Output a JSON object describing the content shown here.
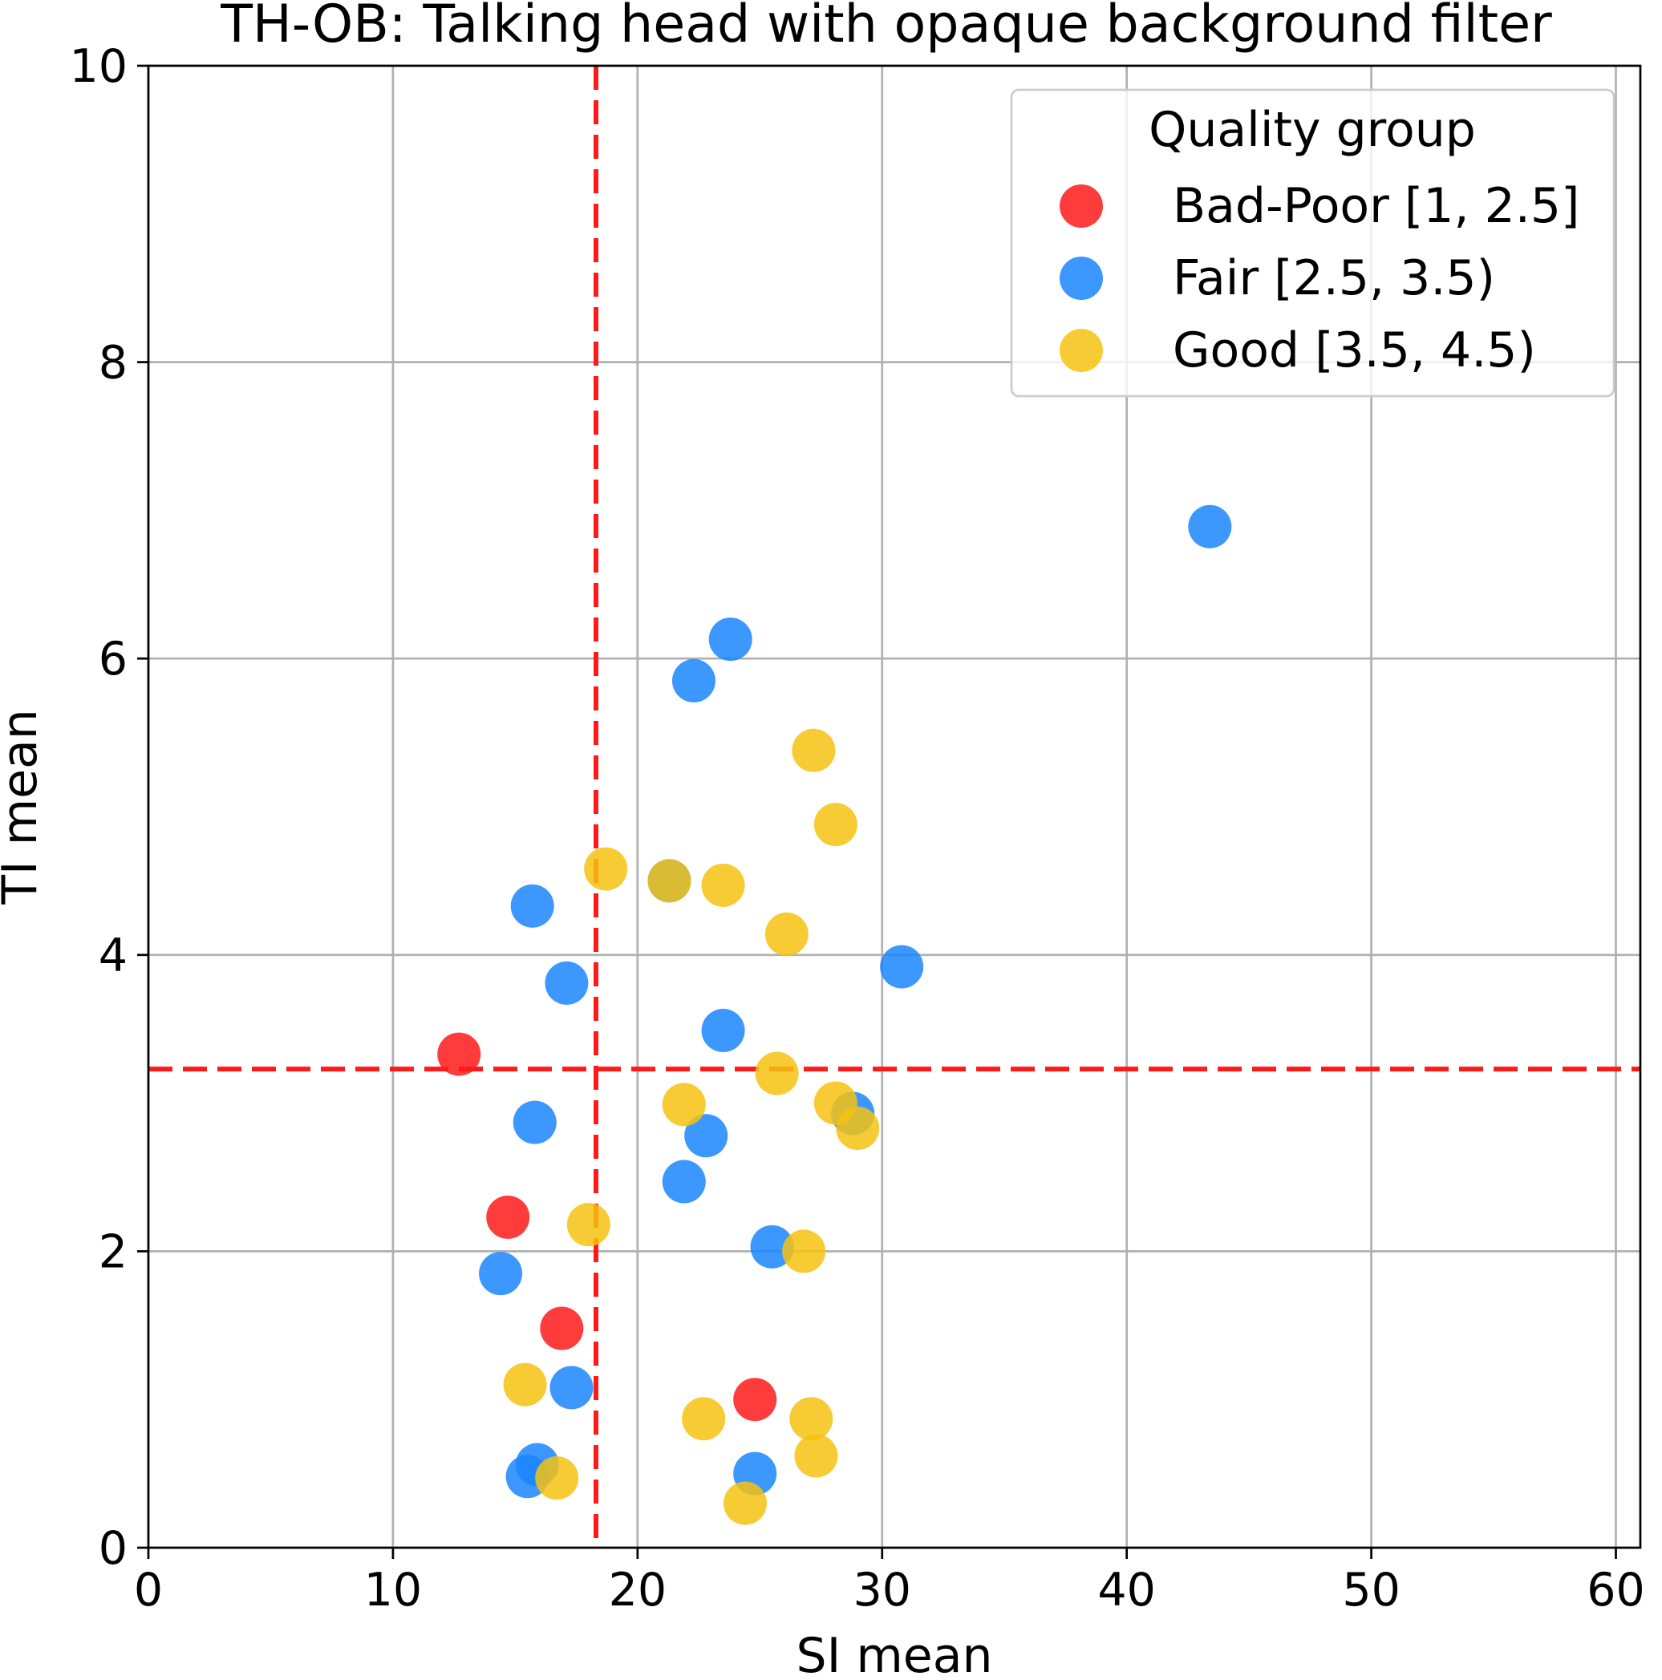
{
  "chart_data": {
    "type": "scatter",
    "title": "TH-OB: Talking head with opaque background filter",
    "xlabel": "SI mean",
    "ylabel": "TI mean",
    "xlim": [
      0,
      61
    ],
    "ylim": [
      0,
      10
    ],
    "xticks": [
      0,
      10,
      20,
      30,
      40,
      50,
      60
    ],
    "yticks": [
      0,
      2,
      4,
      6,
      8,
      10
    ],
    "grid": true,
    "reference_lines": {
      "vertical_x": 18.3,
      "horizontal_y": 3.23,
      "color": "#ff1a1a",
      "style": "dashed"
    },
    "legend": {
      "title": "Quality group",
      "placement": "top-right"
    },
    "series": [
      {
        "name": "Bad-Poor [1, 2.5]",
        "color": "#ff1a1a",
        "points": [
          [
            12.7,
            3.33
          ],
          [
            14.7,
            2.23
          ],
          [
            16.9,
            1.48
          ],
          [
            24.8,
            1.0
          ]
        ]
      },
      {
        "name": "Fair [2.5, 3.5)",
        "color": "#1a85ff",
        "points": [
          [
            43.4,
            6.89
          ],
          [
            23.8,
            6.13
          ],
          [
            22.3,
            5.85
          ],
          [
            21.3,
            4.5
          ],
          [
            15.7,
            4.33
          ],
          [
            17.1,
            3.81
          ],
          [
            30.8,
            3.92
          ],
          [
            23.5,
            3.49
          ],
          [
            15.8,
            2.87
          ],
          [
            22.8,
            2.78
          ],
          [
            28.8,
            2.93
          ],
          [
            21.9,
            2.47
          ],
          [
            25.5,
            2.03
          ],
          [
            14.4,
            1.85
          ],
          [
            17.3,
            1.08
          ],
          [
            15.9,
            0.56
          ],
          [
            15.5,
            0.48
          ],
          [
            24.8,
            0.5
          ]
        ]
      },
      {
        "name": "Good [3.5, 4.5)",
        "color": "#f5c211",
        "points": [
          [
            27.2,
            5.38
          ],
          [
            28.1,
            4.88
          ],
          [
            18.7,
            4.58
          ],
          [
            21.3,
            4.5
          ],
          [
            23.5,
            4.47
          ],
          [
            26.1,
            4.14
          ],
          [
            25.7,
            3.2
          ],
          [
            21.9,
            2.99
          ],
          [
            28.1,
            3.0
          ],
          [
            29.0,
            2.83
          ],
          [
            18.0,
            2.18
          ],
          [
            26.8,
            2.0
          ],
          [
            15.4,
            1.1
          ],
          [
            22.7,
            0.87
          ],
          [
            27.1,
            0.87
          ],
          [
            27.3,
            0.62
          ],
          [
            16.7,
            0.47
          ],
          [
            24.4,
            0.3
          ]
        ]
      }
    ]
  }
}
